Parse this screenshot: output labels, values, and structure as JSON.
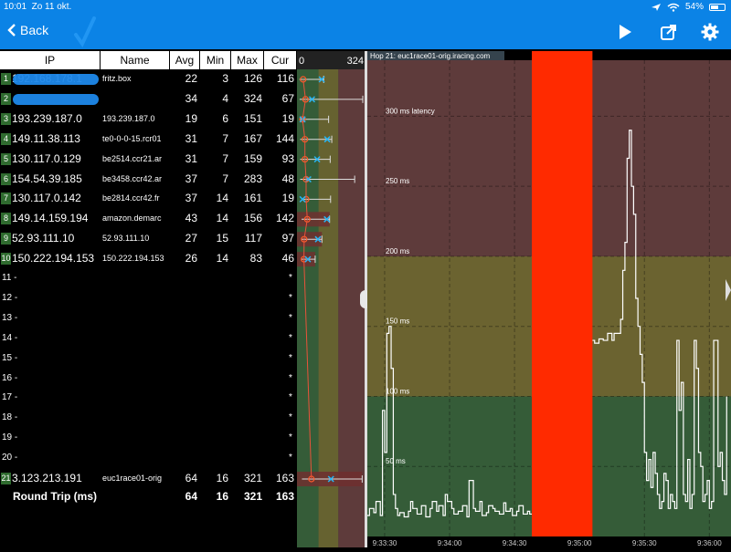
{
  "status_bar": {
    "time": "10:01",
    "date": "Zo 11 okt.",
    "battery": "54%"
  },
  "nav": {
    "back_label": "Back"
  },
  "colors": {
    "nav_blue": "#0b83e6",
    "green_zone": "#355c38",
    "yellow_zone": "#6b6330",
    "red_zone": "#5e3b3b",
    "gap_red": "#ff2a00",
    "hop_row_red": "#6e2f2f"
  },
  "table": {
    "headers": {
      "ip": "IP",
      "name": "Name",
      "avg": "Avg",
      "min": "Min",
      "max": "Max",
      "cur": "Cur"
    },
    "rows": [
      {
        "n": "1",
        "ip": "192.168.178.1",
        "name": "fritz.box",
        "avg": "22",
        "min": "3",
        "max": "126",
        "cur": "116",
        "redacted": true
      },
      {
        "n": "2",
        "ip": "",
        "name": "",
        "avg": "34",
        "min": "4",
        "max": "324",
        "cur": "67",
        "redacted": true
      },
      {
        "n": "3",
        "ip": "193.239.187.0",
        "name": "193.239.187.0",
        "avg": "19",
        "min": "6",
        "max": "151",
        "cur": "19"
      },
      {
        "n": "4",
        "ip": "149.11.38.113",
        "name": "te0-0-0-15.rcr01",
        "avg": "31",
        "min": "7",
        "max": "167",
        "cur": "144"
      },
      {
        "n": "5",
        "ip": "130.117.0.129",
        "name": "be2514.ccr21.ar",
        "avg": "31",
        "min": "7",
        "max": "159",
        "cur": "93"
      },
      {
        "n": "6",
        "ip": "154.54.39.185",
        "name": "be3458.ccr42.ar",
        "avg": "37",
        "min": "7",
        "max": "283",
        "cur": "48"
      },
      {
        "n": "7",
        "ip": "130.117.0.142",
        "name": "be2814.ccr42.fr",
        "avg": "37",
        "min": "14",
        "max": "161",
        "cur": "19"
      },
      {
        "n": "8",
        "ip": "149.14.159.194",
        "name": "amazon.demarc",
        "avg": "43",
        "min": "14",
        "max": "156",
        "cur": "142"
      },
      {
        "n": "9",
        "ip": "52.93.111.10",
        "name": "52.93.111.10",
        "avg": "27",
        "min": "15",
        "max": "117",
        "cur": "97"
      },
      {
        "n": "10",
        "ip": "150.222.194.153",
        "name": "150.222.194.153",
        "avg": "26",
        "min": "14",
        "max": "83",
        "cur": "46"
      }
    ],
    "empty_rows": [
      "11 -",
      "12 -",
      "13 -",
      "14 -",
      "15 -",
      "16 -",
      "17 -",
      "18 -",
      "19 -",
      "20 -"
    ],
    "empty_marker": "*",
    "last_row": {
      "n": "21",
      "ip": "3.123.213.191",
      "name": "euc1race01-orig",
      "avg": "64",
      "min": "16",
      "max": "321",
      "cur": "163"
    },
    "round_trip": {
      "label": "Round Trip (ms)",
      "avg": "64",
      "min": "16",
      "max": "321",
      "cur": "163"
    }
  },
  "mini_chart": {
    "scale_min": "0",
    "scale_max": "324"
  },
  "chart_data": {
    "type": "line",
    "title": "Hop 21: euc1race01-orig.iracing.com",
    "y_labels": [
      "300 ms latency",
      "250 ms",
      "200 ms",
      "150 ms",
      "100 ms",
      "50 ms"
    ],
    "y_label_values": [
      300,
      250,
      200,
      150,
      100,
      50
    ],
    "ylim": [
      0,
      340
    ],
    "zones": [
      {
        "name": "green",
        "from": 0,
        "to": 100
      },
      {
        "name": "yellow",
        "from": 100,
        "to": 200
      },
      {
        "name": "red",
        "from": 200,
        "to": 340
      }
    ],
    "x_ticks": [
      "9:33:30",
      "9:34:00",
      "9:34:30",
      "9:35:00",
      "9:35:30",
      "9:36:00"
    ],
    "x_tick_values": [
      0,
      30,
      60,
      90,
      120,
      150
    ],
    "xlim": [
      -8,
      160
    ],
    "gap": [
      68,
      96
    ],
    "series": [
      {
        "values": [
          [
            -8,
            15
          ],
          [
            -7,
            20
          ],
          [
            -5,
            17
          ],
          [
            -4,
            25
          ],
          [
            -2,
            15
          ],
          [
            -1,
            90
          ],
          [
            0,
            60
          ],
          [
            1,
            145
          ],
          [
            2,
            150
          ],
          [
            3,
            120
          ],
          [
            4,
            30
          ],
          [
            5,
            20
          ],
          [
            6,
            15
          ],
          [
            7,
            17
          ],
          [
            9,
            14
          ],
          [
            11,
            18
          ],
          [
            12,
            25
          ],
          [
            13,
            20
          ],
          [
            15,
            16
          ],
          [
            17,
            22
          ],
          [
            19,
            14
          ],
          [
            21,
            20
          ],
          [
            22,
            25
          ],
          [
            24,
            18
          ],
          [
            25,
            22
          ],
          [
            27,
            15
          ],
          [
            28,
            30
          ],
          [
            29,
            25
          ],
          [
            31,
            20
          ],
          [
            32,
            16
          ],
          [
            34,
            18
          ],
          [
            36,
            22
          ],
          [
            38,
            14
          ],
          [
            39,
            40
          ],
          [
            41,
            20
          ],
          [
            42,
            18
          ],
          [
            44,
            25
          ],
          [
            45,
            15
          ],
          [
            47,
            17
          ],
          [
            48,
            22
          ],
          [
            50,
            20
          ],
          [
            51,
            18
          ],
          [
            53,
            16
          ],
          [
            55,
            24
          ],
          [
            56,
            18
          ],
          [
            58,
            20
          ],
          [
            59,
            15
          ],
          [
            61,
            18
          ],
          [
            62,
            22
          ],
          [
            64,
            16
          ],
          [
            66,
            18
          ],
          [
            67,
            16
          ],
          [
            68,
            16
          ],
          [
            96,
            140
          ],
          [
            97,
            138
          ],
          [
            99,
            141
          ],
          [
            101,
            140
          ],
          [
            103,
            145
          ],
          [
            105,
            140
          ],
          [
            106,
            145
          ],
          [
            108,
            145
          ],
          [
            109,
            155
          ],
          [
            110,
            190
          ],
          [
            111,
            210
          ],
          [
            112,
            270
          ],
          [
            113,
            290
          ],
          [
            114,
            250
          ],
          [
            115,
            230
          ],
          [
            116,
            170
          ],
          [
            117,
            150
          ],
          [
            118,
            130
          ],
          [
            119,
            110
          ],
          [
            120,
            60
          ],
          [
            121,
            40
          ],
          [
            122,
            55
          ],
          [
            123,
            35
          ],
          [
            124,
            60
          ],
          [
            125,
            45
          ],
          [
            126,
            30
          ],
          [
            127,
            20
          ],
          [
            128,
            25
          ],
          [
            129,
            45
          ],
          [
            130,
            40
          ],
          [
            131,
            20
          ],
          [
            132,
            30
          ],
          [
            133,
            25
          ],
          [
            134,
            20
          ],
          [
            135,
            140
          ],
          [
            136,
            90
          ],
          [
            137,
            110
          ],
          [
            138,
            30
          ],
          [
            139,
            25
          ],
          [
            140,
            55
          ],
          [
            141,
            20
          ],
          [
            142,
            30
          ],
          [
            143,
            140
          ],
          [
            144,
            120
          ],
          [
            145,
            60
          ],
          [
            146,
            50
          ],
          [
            147,
            25
          ],
          [
            148,
            30
          ],
          [
            149,
            40
          ],
          [
            150,
            20
          ],
          [
            151,
            25
          ],
          [
            152,
            140
          ],
          [
            153,
            140
          ],
          [
            154,
            50
          ],
          [
            155,
            60
          ],
          [
            156,
            40
          ],
          [
            157,
            30
          ],
          [
            158,
            100
          ]
        ]
      }
    ]
  }
}
